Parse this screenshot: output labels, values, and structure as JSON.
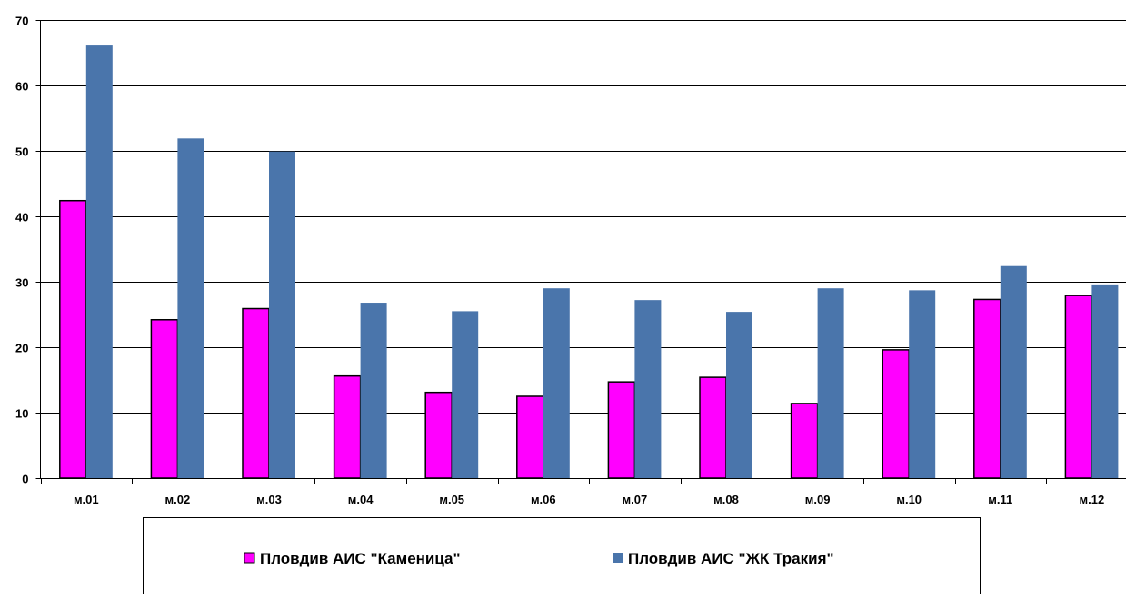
{
  "chart_data": {
    "type": "bar",
    "categories": [
      "м.01",
      "м.02",
      "м.03",
      "м.04",
      "м.05",
      "м.06",
      "м.07",
      "м.08",
      "м.09",
      "м.10",
      "м.11",
      "м.12"
    ],
    "series": [
      {
        "name": "Пловдив АИС \"Каменица\"",
        "color": "#FF00FF",
        "values": [
          42.4,
          24.2,
          25.9,
          15.6,
          13.1,
          12.5,
          14.7,
          15.4,
          11.4,
          19.6,
          27.3,
          27.9
        ]
      },
      {
        "name": "Пловдив АИС \"ЖК Тракия\"",
        "color": "#4A75AB",
        "values": [
          66.1,
          51.9,
          49.9,
          26.8,
          25.5,
          29.0,
          27.2,
          25.4,
          29.0,
          28.7,
          32.4,
          29.6
        ]
      }
    ],
    "ylim": [
      0,
      70
    ],
    "yticks": [
      0,
      10,
      20,
      30,
      40,
      50,
      60,
      70
    ],
    "grid": true,
    "legend_position": "bottom",
    "title": "",
    "xlabel": "",
    "ylabel": ""
  }
}
